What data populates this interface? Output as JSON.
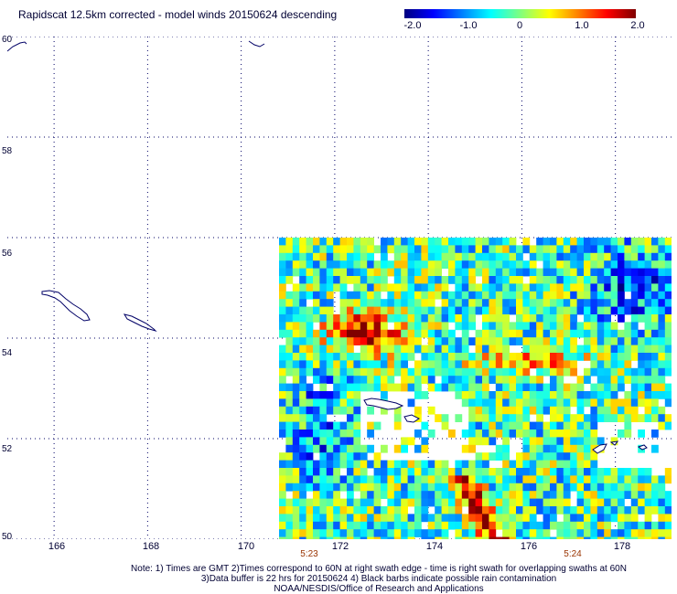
{
  "title": "Rapidscat 12.5km corrected - model winds 20150624 descending",
  "colorbar": {
    "labels": [
      "-2.0",
      "-1.0",
      "0",
      "1.0",
      "2.0"
    ],
    "values": [
      -2.0,
      -1.0,
      0,
      1.0,
      2.0
    ]
  },
  "axes": {
    "lat_labels": [
      "60",
      "58",
      "56",
      "54",
      "52",
      "50"
    ],
    "lat_values": [
      60,
      58,
      56,
      54,
      52,
      50
    ],
    "lon_labels": [
      "166",
      "168",
      "170",
      "172",
      "174",
      "176",
      "178"
    ],
    "lon_values": [
      166,
      168,
      170,
      172,
      174,
      176,
      178
    ],
    "lat_range": [
      50,
      60
    ],
    "lon_range": [
      165,
      179.2
    ]
  },
  "swath_times": [
    {
      "label": "5:23",
      "lon": 171.4
    },
    {
      "label": "5:24",
      "lon": 177.0
    }
  ],
  "notes": [
    "Note: 1) Times are GMT 2)Times correspond to 60N at right swath edge - time is right swath for overlapping swaths at 60N",
    "3)Data buffer is 22 hrs for 20150624 4) Black barbs indicate possible rain contamination",
    "NOAA/NESDIS/Office of Research and Applications"
  ],
  "colors": {
    "land_outline": "#000066",
    "grid": "#000066",
    "time_label": "#993300"
  }
}
